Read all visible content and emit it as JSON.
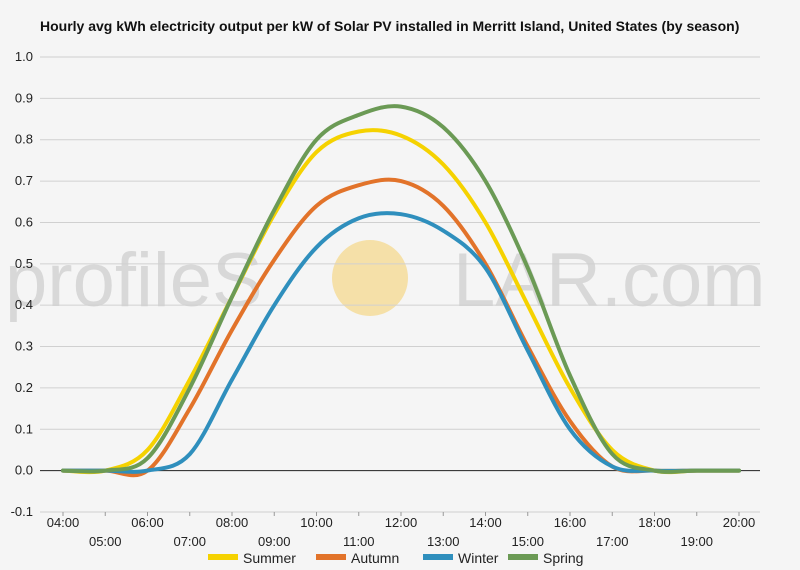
{
  "chart_data": {
    "type": "line",
    "title": "Hourly avg kWh electricity output per kW of Solar PV installed in Merritt Island, United States (by season)",
    "xlabel": "",
    "ylabel": "",
    "x": [
      "04:00",
      "05:00",
      "06:00",
      "07:00",
      "08:00",
      "09:00",
      "10:00",
      "11:00",
      "12:00",
      "13:00",
      "14:00",
      "15:00",
      "16:00",
      "17:00",
      "18:00",
      "19:00",
      "20:00"
    ],
    "ylim": [
      -0.1,
      1.0
    ],
    "yticks": [
      "-0.1",
      "0.0",
      "0.1",
      "0.2",
      "0.3",
      "0.4",
      "0.5",
      "0.6",
      "0.7",
      "0.8",
      "0.9",
      "1.0"
    ],
    "grid": true,
    "legend": "bottom",
    "series": [
      {
        "name": "Summer",
        "color": "#f5d200",
        "values": [
          0.0,
          0.0,
          0.05,
          0.22,
          0.42,
          0.62,
          0.77,
          0.82,
          0.81,
          0.74,
          0.6,
          0.4,
          0.2,
          0.05,
          0.0,
          0.0,
          0.0
        ]
      },
      {
        "name": "Autumn",
        "color": "#e2732a",
        "values": [
          0.0,
          0.0,
          0.0,
          0.15,
          0.34,
          0.51,
          0.64,
          0.69,
          0.7,
          0.64,
          0.5,
          0.3,
          0.12,
          0.01,
          0.0,
          0.0,
          0.0
        ]
      },
      {
        "name": "Winter",
        "color": "#2f8fbd",
        "values": [
          0.0,
          0.0,
          0.0,
          0.04,
          0.22,
          0.4,
          0.54,
          0.61,
          0.62,
          0.58,
          0.49,
          0.29,
          0.1,
          0.01,
          0.0,
          0.0,
          0.0
        ]
      },
      {
        "name": "Spring",
        "color": "#6b9a55",
        "values": [
          0.0,
          0.0,
          0.03,
          0.2,
          0.42,
          0.63,
          0.8,
          0.86,
          0.88,
          0.83,
          0.7,
          0.49,
          0.23,
          0.04,
          0.0,
          0.0,
          0.0
        ]
      }
    ]
  },
  "watermark": {
    "left": "profileS",
    "center": "O",
    "right": "LAR.com",
    "sun_color": "#f5e0a8"
  }
}
